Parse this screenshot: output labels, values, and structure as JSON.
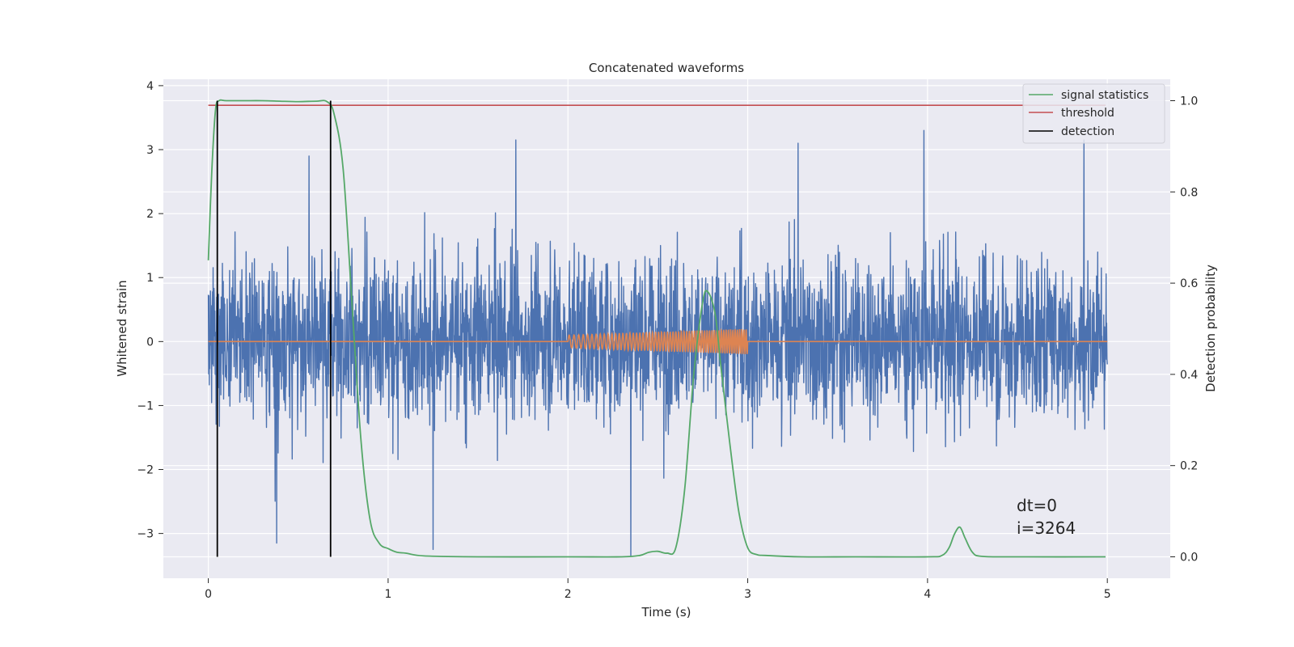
{
  "chart_data": {
    "type": "line",
    "title": "Concatenated waveforms",
    "xlabel": "Time (s)",
    "ylabel": "Whitened strain",
    "y2label": "Detection probability",
    "xlim": [
      -0.25,
      5.35
    ],
    "ylim": [
      -3.7,
      4.1
    ],
    "y2lim": [
      -0.047,
      1.047
    ],
    "x_ticks": [
      0,
      1,
      2,
      3,
      4,
      5
    ],
    "y_ticks": [
      -3,
      -2,
      -1,
      0,
      1,
      2,
      3,
      4
    ],
    "y2_ticks": [
      0.0,
      0.2,
      0.4,
      0.6,
      0.8,
      1.0
    ],
    "grid": true,
    "legend_position": "top-right",
    "legend": [
      "signal statistics",
      "threshold",
      "detection"
    ],
    "annotations": [
      "dt=0",
      "i=3264"
    ],
    "series": [
      {
        "name": "",
        "axis": "left",
        "description": "whitened strain noise, sampled at ~4096 Hz, amplitude mostly within -1.9..2.2 with peaks to about 3.3 and -3.4",
        "x_range": [
          0,
          5
        ],
        "typical_range": [
          -1.8,
          2.1
        ],
        "peaks": [
          [
            0.56,
            2.9
          ],
          [
            1.71,
            3.15
          ],
          [
            3.28,
            3.1
          ],
          [
            3.98,
            3.3
          ],
          [
            4.87,
            3.15
          ],
          [
            2.35,
            -3.35
          ],
          [
            0.38,
            -3.15
          ],
          [
            1.25,
            -3.25
          ]
        ],
        "color": "#4c72b0"
      },
      {
        "name": "",
        "axis": "left",
        "description": "injected chirp waveform between 2.0 s and 3.0 s",
        "x_range": [
          0,
          5
        ],
        "chirp_start": 2.0,
        "chirp_end": 3.0,
        "amplitude_start": 0.1,
        "amplitude_end": 0.2,
        "color": "#dd8452"
      },
      {
        "name": "signal statistics",
        "axis": "right",
        "color": "#55a868",
        "x": [
          0,
          0.02,
          0.04,
          0.06,
          0.1,
          0.2,
          0.3,
          0.4,
          0.5,
          0.6,
          0.66,
          0.7,
          0.75,
          0.8,
          0.85,
          0.9,
          0.95,
          1.0,
          1.05,
          1.1,
          1.2,
          1.5,
          2.0,
          2.3,
          2.4,
          2.45,
          2.5,
          2.55,
          2.6,
          2.65,
          2.7,
          2.75,
          2.78,
          2.82,
          2.85,
          2.9,
          2.95,
          3.0,
          3.05,
          3.1,
          3.3,
          3.6,
          4.0,
          4.08,
          4.12,
          4.15,
          4.18,
          4.21,
          4.25,
          4.3,
          4.5,
          4.99
        ],
        "y": [
          0.65,
          0.85,
          0.98,
          1.0,
          1.0,
          1.0,
          1.0,
          0.999,
          0.998,
          0.999,
          0.998,
          0.97,
          0.85,
          0.55,
          0.25,
          0.08,
          0.03,
          0.018,
          0.01,
          0.008,
          0.002,
          0.0,
          0.0,
          0.0,
          0.003,
          0.01,
          0.012,
          0.008,
          0.02,
          0.15,
          0.4,
          0.56,
          0.58,
          0.53,
          0.42,
          0.25,
          0.1,
          0.02,
          0.005,
          0.003,
          0.0,
          0.0,
          0.0,
          0.003,
          0.02,
          0.05,
          0.065,
          0.04,
          0.01,
          0.001,
          0.0,
          0.0
        ]
      },
      {
        "name": "threshold",
        "axis": "right",
        "color": "#c44e52",
        "x": [
          0,
          4.99
        ],
        "y": [
          0.99,
          0.99
        ]
      },
      {
        "name": "detection",
        "axis": "right",
        "color": "#000000",
        "x": [
          0.05,
          0.68
        ],
        "y_range": [
          0,
          1
        ]
      }
    ]
  }
}
